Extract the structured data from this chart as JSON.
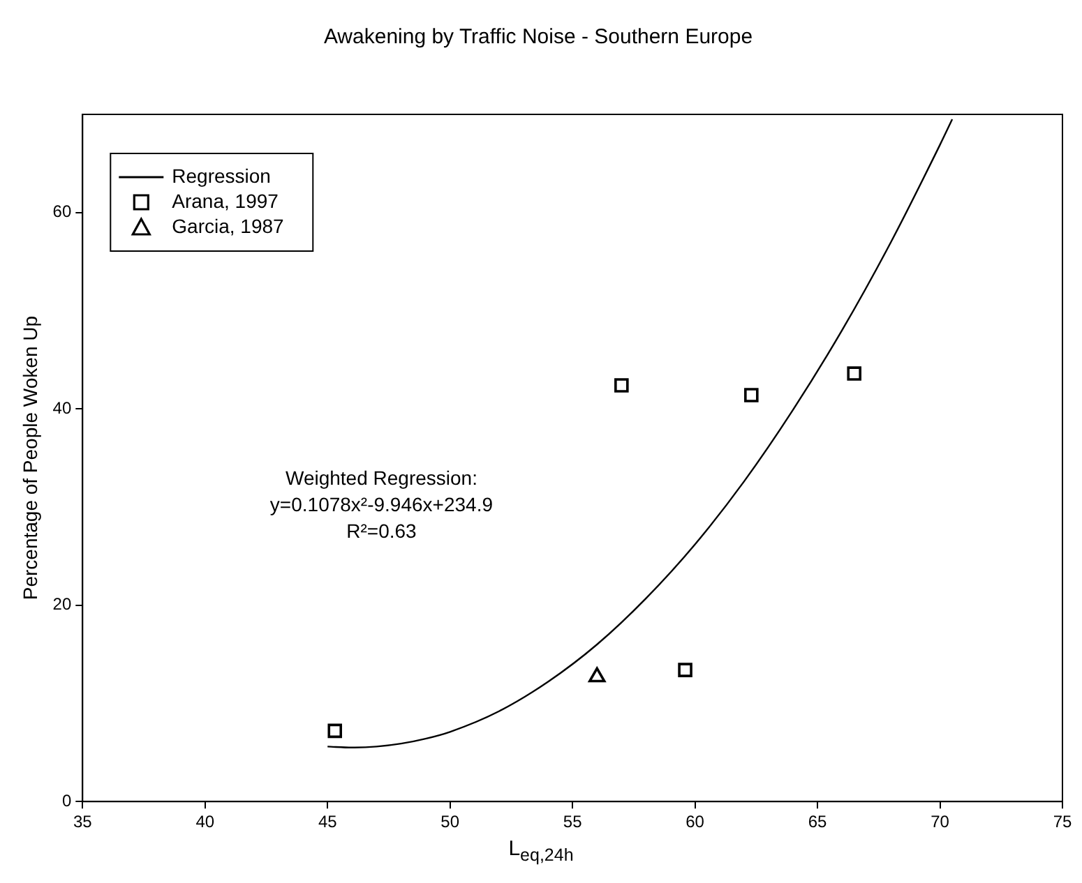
{
  "chart_data": {
    "type": "scatter",
    "title": "Awakening by Traffic Noise - Southern Europe",
    "xlabel": "L$_{eq,24h}$",
    "ylabel": "Percentage of People Woken Up",
    "xlim": [
      35,
      75
    ],
    "xticks": [
      35,
      40,
      45,
      50,
      55,
      60,
      65,
      70,
      75
    ],
    "ylim": [
      0,
      70
    ],
    "yticks": [
      0,
      20,
      40,
      60
    ],
    "grid": false,
    "legend": "top left",
    "annotations": [
      "Weighted Regression:\ny=0.1078x²-9.946x+234.9\nR²=0.63"
    ],
    "series": [
      {
        "name": "Regression",
        "type": "line",
        "color": "#000000",
        "marker": "none",
        "line_style": "solid",
        "x": [
          45,
          46,
          47,
          48,
          49,
          50,
          52,
          54,
          56,
          58,
          60,
          62,
          64,
          66,
          68,
          70,
          70.5
        ],
        "values": [
          5.6,
          5.5,
          5.6,
          5.9,
          6.4,
          7.1,
          9.2,
          12.2,
          16.0,
          20.7,
          26.2,
          32.6,
          39.9,
          48.0,
          57.0,
          66.9,
          69.5
        ]
      },
      {
        "name": "Arana, 1997",
        "color": "#000000",
        "marker": "square",
        "x": [
          45.3,
          57.0,
          62.3,
          66.5,
          59.6
        ],
        "values": [
          7.2,
          42.4,
          41.4,
          43.6,
          13.4
        ]
      },
      {
        "name": "Garcia, 1987",
        "color": "#000000",
        "marker": "triangle",
        "x": [
          56.0
        ],
        "values": [
          12.7
        ]
      }
    ]
  }
}
